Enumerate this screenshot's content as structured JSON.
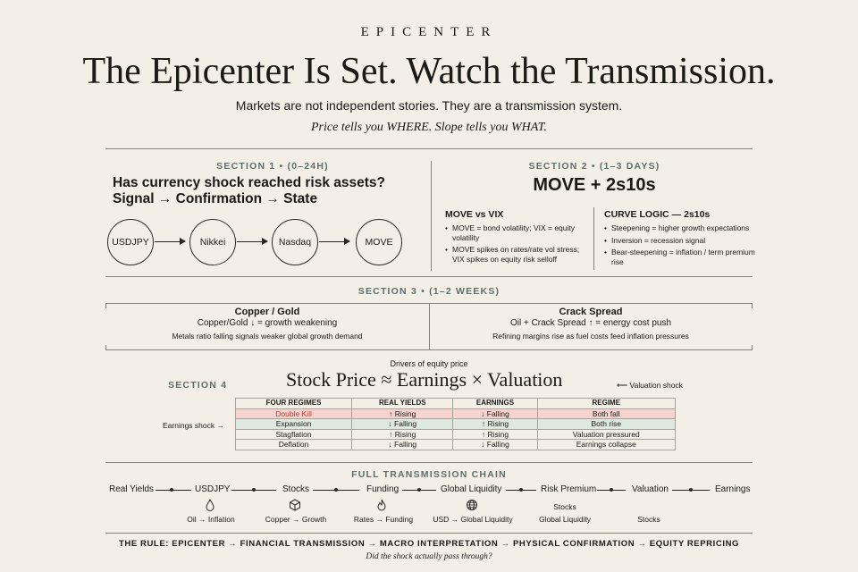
{
  "header": {
    "brand": "EPICENTER",
    "title": "The Epicenter Is Set. Watch the Transmission.",
    "subtitle": "Markets are not independent stories. They are a transmission system.",
    "tagline": "Price tells you WHERE. Slope tells you WHAT."
  },
  "section1": {
    "label": "SECTION 1 • (0–24H)",
    "question": "Has currency shock reached risk assets?",
    "flow": "Signal → Confirmation → State",
    "nodes": [
      "USDJPY",
      "Nikkei",
      "Nasdaq",
      "MOVE"
    ]
  },
  "section2": {
    "label": "SECTION 2 • (1–3 DAYS)",
    "title": "MOVE + 2s10s",
    "left": {
      "heading": "MOVE vs VIX",
      "bullets": [
        "MOVE = bond volatility; VIX = equity volatility",
        "MOVE spikes on rates/rate vol stress; VIX spikes on equity risk selloff"
      ]
    },
    "right": {
      "heading": "CURVE LOGIC — 2s10s",
      "bullets": [
        "Steepening = higher growth expectations",
        "Inversion = recession signal",
        "Bear-steepening = inflation / term premium rise"
      ]
    }
  },
  "section3": {
    "label": "SECTION 3 • (1–2 WEEKS)",
    "left": {
      "heading": "Copper / Gold",
      "sub": "Copper/Gold ↓ = growth weakening",
      "note": "Metals ratio falling signals weaker global growth demand"
    },
    "right": {
      "heading": "Crack Spread",
      "sub": "Oil + Crack Spread ↑ = energy cost push",
      "note": "Refining margins rise as fuel costs feed inflation pressures"
    }
  },
  "section4": {
    "label": "SECTION 4",
    "drivers": "Drivers of equity price",
    "formula": "Stock Price ≈ Earnings × Valuation",
    "valuation_shock": "⟵ Valuation shock",
    "earnings_shock": "Earnings shock →",
    "table": {
      "headers": [
        "FOUR REGIMES",
        "REAL YIELDS",
        "EARNINGS",
        "REGIME"
      ],
      "rows": [
        [
          "Double Kill",
          "↑ Rising",
          "↓ Falling",
          "Both fall"
        ],
        [
          "Expansion",
          "↓ Falling",
          "↑ Rising",
          "Both rise"
        ],
        [
          "Stagflation",
          "↑ Rising",
          "↑ Rising",
          "Valuation pressured"
        ],
        [
          "Deflation",
          "↓ Falling",
          "↓ Falling",
          "Earnings collapse"
        ]
      ]
    }
  },
  "chain": {
    "label": "FULL TRANSMISSION CHAIN",
    "steps": [
      "Real Yields",
      "USDJPY",
      "Stocks",
      "Funding",
      "Global Liquidity",
      "Risk Premium",
      "Valuation",
      "Earnings"
    ],
    "icons": [
      {
        "icon": "droplet-icon",
        "label": "Oil → Inflation"
      },
      {
        "icon": "cube-icon",
        "label": "Copper → Growth"
      },
      {
        "icon": "flame-icon",
        "label": "Rates → Funding"
      },
      {
        "icon": "globe-icon",
        "label": "USD → Global Liquidity"
      },
      {
        "icon": "",
        "label": "Stocks"
      },
      {
        "icon": "",
        "label": "Global Liquidity"
      },
      {
        "icon": "",
        "label": "Stocks"
      }
    ]
  },
  "rule": {
    "text": "THE RULE: EPICENTER → FINANCIAL TRANSMISSION → MACRO INTERPRETATION → PHYSICAL CONFIRMATION → EQUITY REPRICING",
    "question": "Did the shock actually pass through?"
  },
  "colors": {
    "background": "#f3efe6",
    "accent_label": "#5d6f6a",
    "double_kill": "#c0392b",
    "double_kill_bg": "#f5d4cf",
    "expansion_bg": "#dde8df"
  }
}
